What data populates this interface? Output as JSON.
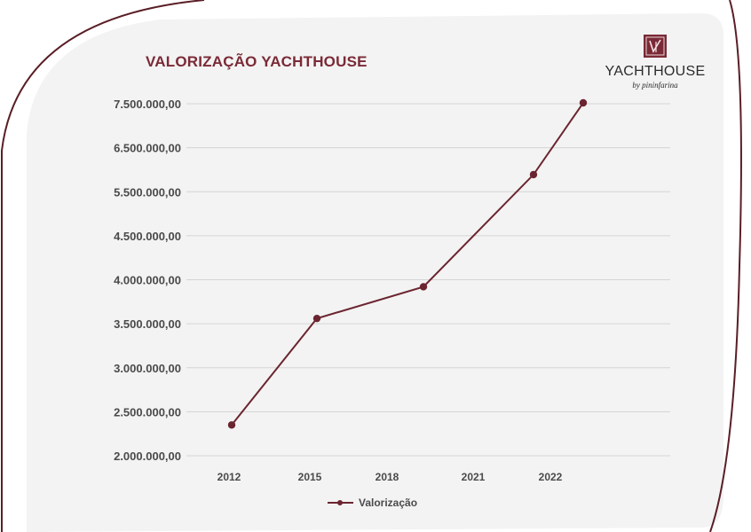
{
  "brand": {
    "name": "YACHTHOUSE",
    "subtitle": "by pininfarina",
    "logo_icon": "yachthouse-monogram-icon",
    "accent_color": "#7a2a36"
  },
  "chart_data": {
    "type": "line",
    "title": "VALORIZAÇÃO YACHTHOUSE",
    "xlabel": "",
    "ylabel": "",
    "categories": [
      "2012",
      "2015",
      "2018",
      "2021",
      "2022"
    ],
    "y_tick_labels": [
      "2.000.000,00",
      "2.500.000,00",
      "3.000.000,00",
      "3.500.000,00",
      "4.000.000,00",
      "4.500.000,00",
      "5.500.000,00",
      "6.500.000,00",
      "7.500.000,00"
    ],
    "series": [
      {
        "name": "Valorização",
        "color": "#6b2530",
        "values": [
          2350000,
          3560000,
          3920000,
          5890000,
          7520000
        ]
      }
    ],
    "grid": true,
    "legend_position": "bottom"
  }
}
